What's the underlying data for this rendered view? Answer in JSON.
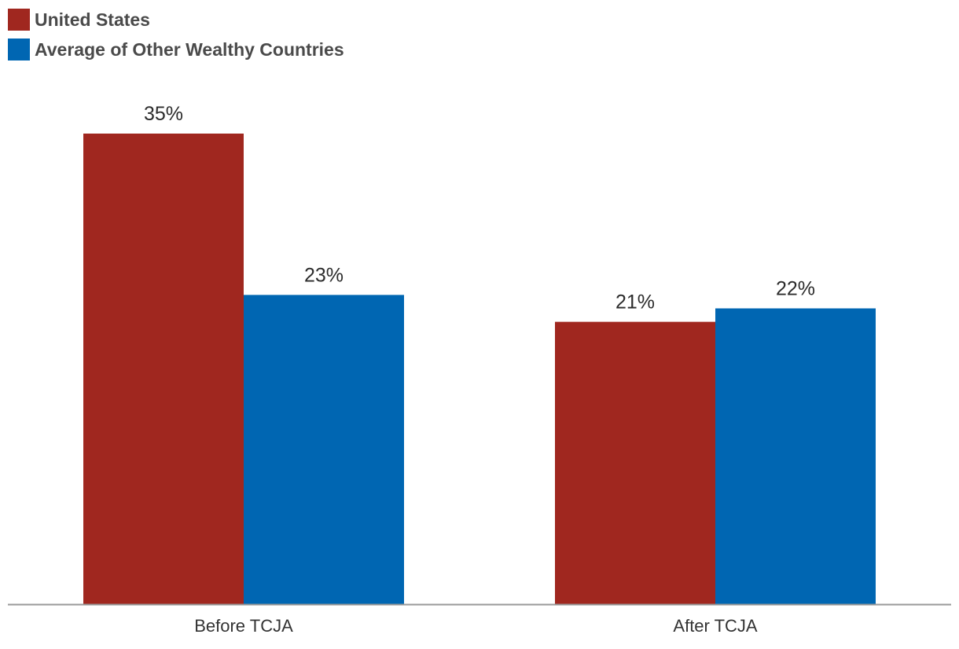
{
  "chart_data": {
    "type": "bar",
    "categories": [
      "Before TCJA",
      "After TCJA"
    ],
    "series": [
      {
        "name": "United States",
        "color": "#a0271f",
        "values": [
          35,
          21
        ],
        "labels": [
          "35%",
          "21%"
        ]
      },
      {
        "name": "Average of Other Wealthy Countries",
        "color": "#0066b2",
        "values": [
          23,
          22
        ],
        "labels": [
          "23%",
          "22%"
        ]
      }
    ],
    "title": "",
    "xlabel": "",
    "ylabel": "",
    "ylim": [
      0,
      35
    ],
    "grid": false,
    "legend": "top-left",
    "axis_color": "#999999"
  }
}
